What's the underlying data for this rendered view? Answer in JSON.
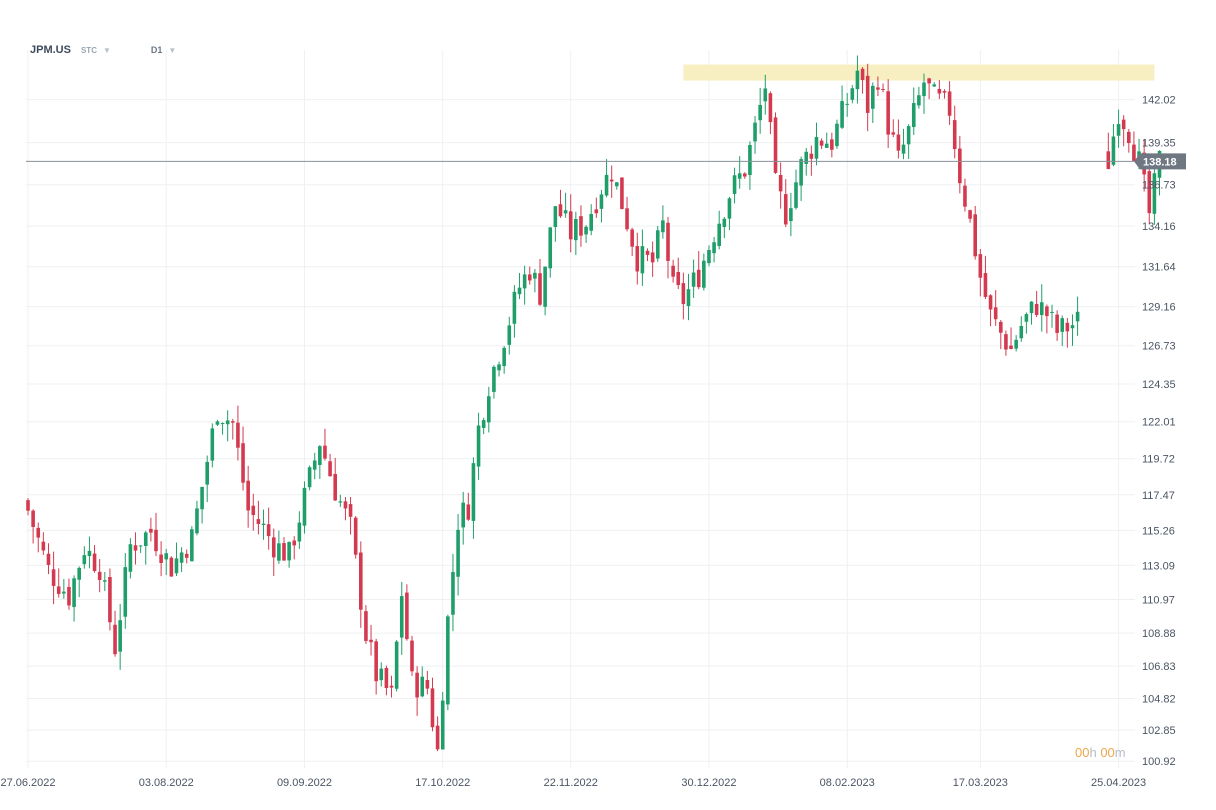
{
  "header": {
    "symbol": "JPM.US",
    "sub": "STC",
    "timeframe": "D1"
  },
  "countdown": {
    "hours": "00",
    "hour_unit": "h",
    "minutes": "00",
    "minute_unit": "m"
  },
  "colors": {
    "up": "#1f9e6a",
    "down": "#d43a4f",
    "zone": "#f7efc2",
    "current_line": "#8a9099",
    "current_label_bg": "#6f7782",
    "grid": "#eef0f3"
  },
  "chart_data": {
    "type": "candlestick",
    "symbol": "JPM.US",
    "timeframe": "D1",
    "current_price": "138.18",
    "ylim": [
      100.5,
      145.1
    ],
    "y_ticks": [
      "142.02",
      "139.35",
      "136.73",
      "134.16",
      "131.64",
      "129.16",
      "126.73",
      "124.35",
      "122.01",
      "119.72",
      "117.47",
      "115.26",
      "113.09",
      "110.97",
      "108.88",
      "106.83",
      "104.82",
      "102.85",
      "100.92"
    ],
    "x_ticks": [
      {
        "label": "27.06.2022",
        "index": 0
      },
      {
        "label": "03.08.2022",
        "index": 27
      },
      {
        "label": "09.09.2022",
        "index": 54
      },
      {
        "label": "17.10.2022",
        "index": 81
      },
      {
        "label": "22.11.2022",
        "index": 106
      },
      {
        "label": "30.12.2022",
        "index": 133
      },
      {
        "label": "08.02.2023",
        "index": 160
      },
      {
        "label": "17.03.2023",
        "index": 186
      },
      {
        "label": "25.04.2023",
        "index": 213
      }
    ],
    "resistance_zone": {
      "start_index": 128,
      "end_index": 220,
      "low": 143.2,
      "high": 144.2
    },
    "close_anchors": [
      [
        0,
        116.5
      ],
      [
        4,
        112.8
      ],
      [
        8,
        111.2
      ],
      [
        11,
        114.2
      ],
      [
        14,
        113.0
      ],
      [
        17,
        108.0
      ],
      [
        20,
        114.3
      ],
      [
        24,
        115.2
      ],
      [
        28,
        113.0
      ],
      [
        32,
        114.8
      ],
      [
        34,
        118.0
      ],
      [
        37,
        122.8
      ],
      [
        40,
        121.9
      ],
      [
        43,
        116.5
      ],
      [
        46,
        115.4
      ],
      [
        48,
        114.4
      ],
      [
        51,
        113.7
      ],
      [
        54,
        117.3
      ],
      [
        57,
        120.8
      ],
      [
        60,
        117.8
      ],
      [
        63,
        115.4
      ],
      [
        66,
        108.8
      ],
      [
        68,
        106.3
      ],
      [
        71,
        104.9
      ],
      [
        73,
        111.4
      ],
      [
        75,
        105.8
      ],
      [
        78,
        105.5
      ],
      [
        80,
        101.5
      ],
      [
        82,
        109.7
      ],
      [
        84,
        115.9
      ],
      [
        86,
        116.8
      ],
      [
        88,
        121.6
      ],
      [
        90,
        124.4
      ],
      [
        93,
        127.3
      ],
      [
        96,
        130.4
      ],
      [
        98,
        131.5
      ],
      [
        100,
        130.0
      ],
      [
        103,
        135.5
      ],
      [
        106,
        133.7
      ],
      [
        109,
        134.4
      ],
      [
        112,
        136.6
      ],
      [
        114,
        137.6
      ],
      [
        116,
        135.6
      ],
      [
        119,
        132.2
      ],
      [
        122,
        131.9
      ],
      [
        124,
        134.2
      ],
      [
        126,
        130.2
      ],
      [
        128,
        129.6
      ],
      [
        131,
        131.2
      ],
      [
        134,
        133.8
      ],
      [
        137,
        136.2
      ],
      [
        140,
        137.7
      ],
      [
        142,
        140.2
      ],
      [
        144,
        142.9
      ],
      [
        146,
        136.6
      ],
      [
        148,
        135.0
      ],
      [
        151,
        137.9
      ],
      [
        154,
        139.6
      ],
      [
        157,
        139.4
      ],
      [
        160,
        141.9
      ],
      [
        162,
        143.8
      ],
      [
        164,
        141.6
      ],
      [
        166,
        143.5
      ],
      [
        168,
        140.5
      ],
      [
        170,
        138.2
      ],
      [
        172,
        140.0
      ],
      [
        175,
        143.1
      ],
      [
        177,
        142.1
      ],
      [
        180,
        141.4
      ],
      [
        182,
        137.3
      ],
      [
        184,
        134.4
      ],
      [
        186,
        131.0
      ],
      [
        188,
        128.6
      ],
      [
        190,
        127.5
      ],
      [
        192,
        126.5
      ],
      [
        194,
        128.0
      ],
      [
        197,
        129.3
      ],
      [
        199,
        128.7
      ],
      [
        201,
        127.6
      ],
      [
        203,
        127.9
      ],
      [
        205,
        128.2
      ]
    ],
    "gap_after_index": 205,
    "close_anchors_after_gap": [
      [
        211,
        138.2
      ],
      [
        213,
        141.4
      ],
      [
        215,
        140.1
      ],
      [
        217,
        138.1
      ],
      [
        219,
        134.9
      ],
      [
        221,
        138.2
      ]
    ],
    "note_volatility": 1.3
  }
}
